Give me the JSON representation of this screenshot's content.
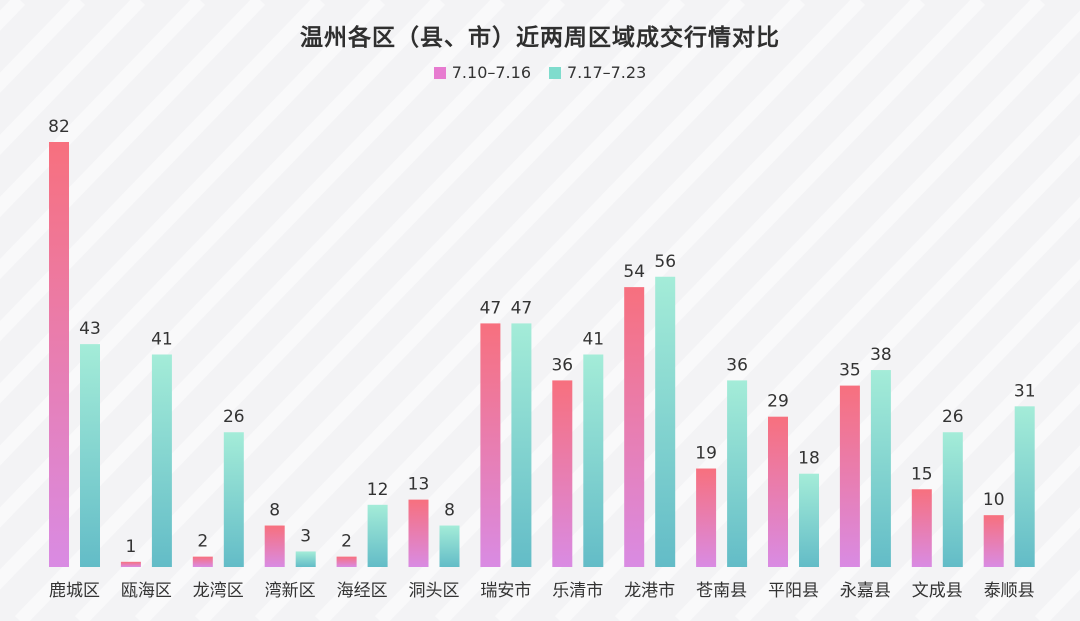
{
  "chart_data": {
    "type": "bar",
    "title": "温州各区（县、市）近两周区域成交行情对比",
    "categories": [
      "鹿城区",
      "瓯海区",
      "龙湾区",
      "湾新区",
      "海经区",
      "洞头区",
      "瑞安市",
      "乐清市",
      "龙港市",
      "苍南县",
      "平阳县",
      "永嘉县",
      "文成县",
      "泰顺县"
    ],
    "series": [
      {
        "name": "7.10–7.16",
        "values": [
          82,
          1,
          2,
          8,
          2,
          13,
          47,
          36,
          54,
          19,
          29,
          35,
          15,
          10
        ]
      },
      {
        "name": "7.17–7.23",
        "values": [
          43,
          41,
          26,
          3,
          12,
          8,
          47,
          41,
          56,
          36,
          18,
          38,
          26,
          31
        ]
      }
    ],
    "colors": {
      "series1_top": "#f7707e",
      "series1_bottom": "#d98be3",
      "series2_top": "#a4ecd8",
      "series2_bottom": "#63bcc7",
      "legend1": "#e77bd0",
      "legend2": "#7fdccd"
    },
    "ylim": [
      0,
      82
    ],
    "grid": false,
    "legend_position": "top-center",
    "show_data_labels": true
  }
}
